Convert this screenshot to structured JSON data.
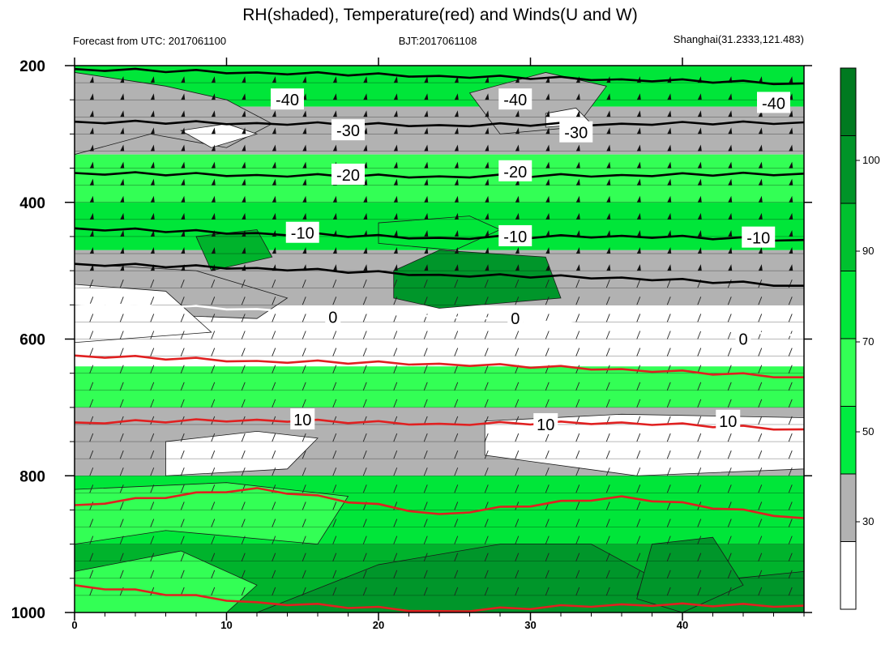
{
  "chart_data": {
    "type": "heatmap",
    "title": "RH(shaded), Temperature(red) and Winds(U and W)",
    "subtitle_left": "Forecast from UTC: 2017061100",
    "subtitle_center": "BJT:2017061108",
    "subtitle_right": "Shanghai(31.2333,121.483)",
    "xlim": [
      0,
      48
    ],
    "ylim": [
      1000,
      200
    ],
    "y_reversed": true,
    "x_ticks": [
      "0",
      "10",
      "20",
      "30",
      "40"
    ],
    "y_ticks": [
      "200",
      "400",
      "600",
      "800",
      "1000"
    ],
    "colorbar": {
      "levels": [
        "30",
        "50",
        "70",
        "90",
        "100"
      ],
      "colors": [
        "#ffffff",
        "#b2b2b2",
        "#00ec40",
        "#33ff55",
        "#00e639",
        "#00c12f",
        "#009428",
        "#007a20"
      ]
    },
    "colors": {
      "white": "#ffffff",
      "gray": "#b2b2b2",
      "green_light": "#33ff55",
      "green_mid": "#00e639",
      "green_dark": "#00b32c",
      "green_darker": "#00962a",
      "temp_line": "#e02020",
      "white_line": "#ffffff"
    },
    "rh_bands": [
      {
        "p_top": 200,
        "p_bot": 260,
        "class": "green_mid"
      },
      {
        "p_top": 260,
        "p_bot": 330,
        "class": "gray"
      },
      {
        "p_top": 330,
        "p_bot": 400,
        "class": "green_light"
      },
      {
        "p_top": 400,
        "p_bot": 470,
        "class": "green_mid"
      },
      {
        "p_top": 470,
        "p_bot": 550,
        "class": "gray"
      },
      {
        "p_top": 550,
        "p_bot": 640,
        "class": "white"
      },
      {
        "p_top": 640,
        "p_bot": 700,
        "class": "green_light"
      },
      {
        "p_top": 700,
        "p_bot": 800,
        "class": "gray"
      },
      {
        "p_top": 800,
        "p_bot": 900,
        "class": "green_mid"
      },
      {
        "p_top": 900,
        "p_bot": 1000,
        "class": "green_dark"
      }
    ],
    "black_contours": [
      {
        "label": "-40",
        "y": [
          205,
          210,
          215,
          220,
          226
        ]
      },
      {
        "label": "-30",
        "y": [
          282,
          284,
          287,
          285,
          283
        ]
      },
      {
        "label": "-20",
        "y": [
          357,
          360,
          362,
          360,
          358
        ]
      },
      {
        "label": "-10",
        "y": [
          438,
          445,
          452,
          449,
          455
        ]
      },
      {
        "label": "",
        "y": [
          490,
          496,
          506,
          510,
          522
        ]
      }
    ],
    "x_samples": [
      0,
      12,
      24,
      36,
      48
    ],
    "zero_line": {
      "label": "0",
      "y": [
        548,
        556,
        566,
        581,
        594
      ]
    },
    "temp_lines": [
      {
        "label": "",
        "y": [
          624,
          632,
          636,
          644,
          656
        ]
      },
      {
        "label": "10",
        "y": [
          722,
          718,
          724,
          722,
          732
        ]
      },
      {
        "label": "",
        "y": [
          843,
          818,
          856,
          830,
          862
        ]
      },
      {
        "label": "",
        "y": [
          960,
          985,
          998,
          988,
          990
        ]
      }
    ],
    "contour_labels": [
      {
        "text": "-40",
        "x": 14,
        "p": 250
      },
      {
        "text": "-40",
        "x": 29,
        "p": 250
      },
      {
        "text": "-40",
        "x": 46,
        "p": 255
      },
      {
        "text": "-30",
        "x": 18,
        "p": 295
      },
      {
        "text": "-30",
        "x": 33,
        "p": 298
      },
      {
        "text": "-20",
        "x": 18,
        "p": 360
      },
      {
        "text": "-20",
        "x": 29,
        "p": 355
      },
      {
        "text": "-10",
        "x": 15,
        "p": 445
      },
      {
        "text": "-10",
        "x": 29,
        "p": 450
      },
      {
        "text": "-10",
        "x": 45,
        "p": 452
      },
      {
        "text": "0",
        "x": 17,
        "p": 568
      },
      {
        "text": "0",
        "x": 29,
        "p": 570
      },
      {
        "text": "0",
        "x": 44,
        "p": 600
      },
      {
        "text": "10",
        "x": 15,
        "p": 718
      },
      {
        "text": "10",
        "x": 31,
        "p": 725
      },
      {
        "text": "10",
        "x": 43,
        "p": 720
      }
    ]
  }
}
